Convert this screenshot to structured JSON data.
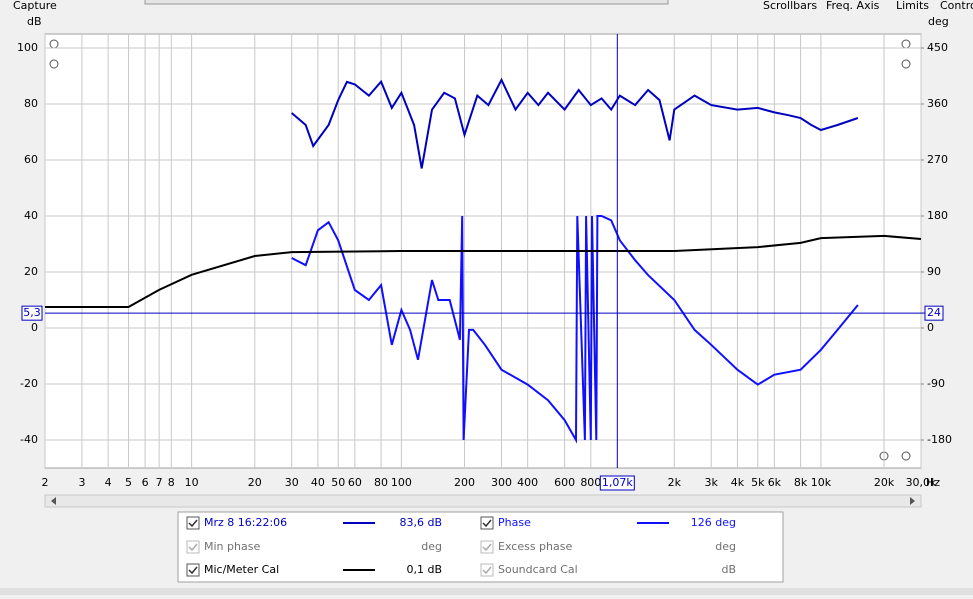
{
  "toolbar": {
    "left": "Capture",
    "right": [
      "Scrollbars",
      "Freq. Axis",
      "Limits",
      "Contro"
    ]
  },
  "chart_data": {
    "type": "line",
    "xscale": "log",
    "grid": true,
    "y_label": "dB",
    "y2_label": "deg",
    "x_unit": "Hz",
    "xlim": [
      2,
      30000
    ],
    "ylim": [
      -50,
      105
    ],
    "y2lim": [
      -225,
      472.5
    ],
    "xticks": [
      2,
      3,
      4,
      5,
      6,
      7,
      8,
      10,
      20,
      30,
      40,
      50,
      60,
      80,
      100,
      200,
      300,
      400,
      600,
      800,
      {
        "value": 2000,
        "label": "2k"
      },
      {
        "value": 3000,
        "label": "3k"
      },
      {
        "value": 4000,
        "label": "4k"
      },
      {
        "value": 5000,
        "label": "5k"
      },
      {
        "value": 6000,
        "label": "6k"
      },
      {
        "value": 8000,
        "label": "8k"
      },
      {
        "value": 10000,
        "label": "10k"
      },
      {
        "value": 20000,
        "label": "20k"
      },
      {
        "value": 30000,
        "label": "30,0k"
      }
    ],
    "yticks": [
      -40,
      -20,
      0,
      20,
      40,
      60,
      80,
      100
    ],
    "y2ticks": [
      -180,
      -90,
      0,
      90,
      180,
      270,
      360,
      450
    ],
    "cursor": {
      "x": {
        "value": 1070,
        "label": "1,07k"
      },
      "y": {
        "value": 5.3,
        "label": "5,3"
      },
      "y2": 24
    },
    "series": [
      {
        "name": "Mrz 8 16:22:06",
        "color": "#0000c0",
        "readout": "83,6 dB",
        "x": [
          30,
          35,
          38,
          45,
          50,
          55,
          60,
          70,
          80,
          90,
          100,
          115,
          125,
          140,
          160,
          180,
          200,
          230,
          260,
          300,
          350,
          400,
          450,
          500,
          600,
          700,
          800,
          900,
          1000,
          1100,
          1300,
          1500,
          1700,
          1900,
          2000,
          2500,
          3000,
          4000,
          5000,
          6000,
          7000,
          8000,
          9000,
          10000,
          12000,
          15000
        ],
        "values": [
          76.8,
          72.5,
          65,
          72.5,
          81.4,
          87.9,
          87,
          83,
          88,
          78.6,
          84,
          72.5,
          57,
          78,
          84,
          82,
          69,
          83,
          79.6,
          88.6,
          78,
          84,
          79.6,
          84,
          78,
          85,
          79.6,
          82,
          78,
          83,
          79.6,
          85,
          81.4,
          67,
          78,
          83,
          79.6,
          78,
          78.6,
          77,
          76,
          75,
          72.5,
          70.7,
          72.5,
          75
        ]
      },
      {
        "name": "Phase",
        "color": "#1010ff",
        "axis": "y2",
        "readout": "126 deg",
        "x": [
          30,
          35,
          40,
          45,
          50,
          60,
          70,
          80,
          90,
          100,
          110,
          120,
          140,
          150,
          170,
          190,
          195,
          198,
          210,
          220,
          250,
          300,
          400,
          500,
          600,
          680,
          690,
          750,
          760,
          800,
          810,
          850,
          860,
          900,
          1000,
          1100,
          1300,
          1500,
          2000,
          2500,
          3000,
          4000,
          5000,
          6000,
          8000,
          10000,
          12000,
          15000
        ],
        "values": [
          112.5,
          101,
          157,
          170,
          141,
          61,
          45,
          69,
          -27,
          29,
          -3,
          -51,
          77,
          45,
          45,
          -19,
          180,
          -180,
          -3,
          -3,
          -27,
          -67,
          -91,
          -116,
          -148,
          -180,
          180,
          -180,
          180,
          -180,
          180,
          -180,
          180,
          180,
          173,
          141,
          109,
          85,
          45,
          -3,
          -27,
          -67,
          -91,
          -75,
          -67,
          -35,
          -3,
          37
        ]
      },
      {
        "name": "Mic/Meter Cal",
        "color": "#000000",
        "readout": "0,1 dB",
        "x": [
          2,
          5,
          7,
          10,
          20,
          30,
          100,
          1000,
          2000,
          5000,
          8000,
          10000,
          20000,
          30000
        ],
        "values": [
          7.5,
          7.5,
          13.6,
          19,
          25.7,
          27.1,
          27.5,
          27.5,
          27.5,
          28.9,
          30.4,
          32.1,
          32.9,
          31.8
        ]
      }
    ]
  },
  "trace_panel": {
    "inactive": [
      {
        "name": "Min phase",
        "unit": "deg"
      },
      {
        "name": "Excess phase",
        "unit": "deg"
      },
      {
        "name": "Soundcard Cal",
        "unit": "dB"
      }
    ]
  }
}
